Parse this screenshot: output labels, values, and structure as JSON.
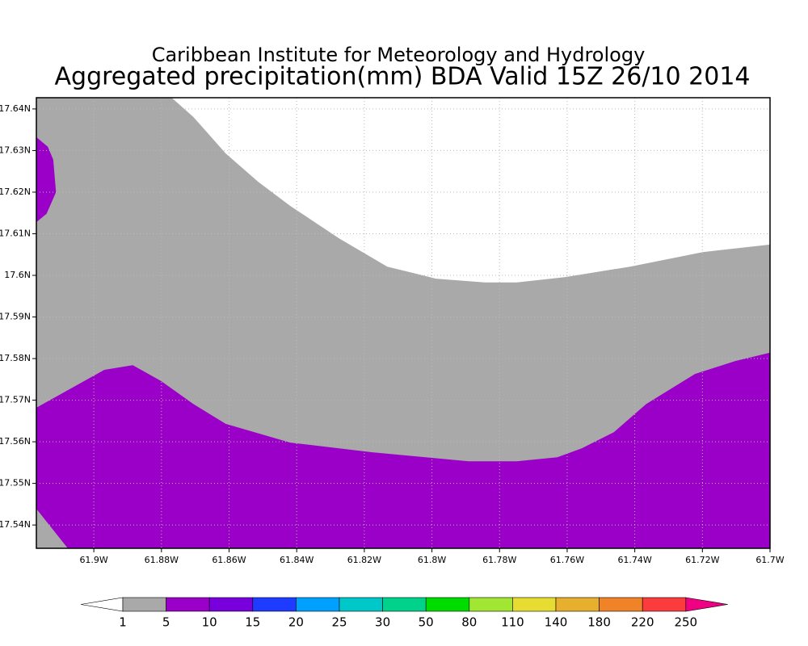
{
  "chart_data": {
    "type": "contour",
    "title": "Caribbean Institute for Meteorology and Hydrology",
    "subtitle": "Aggregated precipitation(mm) BDA Valid 15Z 26/10 2014",
    "xlim": [
      -61.917,
      -61.7
    ],
    "ylim": [
      17.5344,
      17.6427
    ],
    "xticks": [
      {
        "value": -61.9,
        "label": "61.9W"
      },
      {
        "value": -61.88,
        "label": "61.88W"
      },
      {
        "value": -61.86,
        "label": "61.86W"
      },
      {
        "value": -61.84,
        "label": "61.84W"
      },
      {
        "value": -61.82,
        "label": "61.82W"
      },
      {
        "value": -61.8,
        "label": "61.8W"
      },
      {
        "value": -61.78,
        "label": "61.78W"
      },
      {
        "value": -61.76,
        "label": "61.76W"
      },
      {
        "value": -61.74,
        "label": "61.74W"
      },
      {
        "value": -61.72,
        "label": "61.72W"
      },
      {
        "value": -61.7,
        "label": "61.7W"
      }
    ],
    "yticks": [
      {
        "value": 17.54,
        "label": "17.54N"
      },
      {
        "value": 17.55,
        "label": "17.55N"
      },
      {
        "value": 17.56,
        "label": "17.56N"
      },
      {
        "value": 17.57,
        "label": "17.57N"
      },
      {
        "value": 17.58,
        "label": "17.58N"
      },
      {
        "value": 17.59,
        "label": "17.59N"
      },
      {
        "value": 17.6,
        "label": "17.6N"
      },
      {
        "value": 17.61,
        "label": "17.61N"
      },
      {
        "value": 17.62,
        "label": "17.62N"
      },
      {
        "value": 17.63,
        "label": "17.63N"
      },
      {
        "value": 17.64,
        "label": "17.64N"
      }
    ],
    "grid": true,
    "background_color": "#ffffff",
    "regions": [
      {
        "color": "#a9a9a9",
        "x": [
          -61.877,
          -61.8706,
          -61.861,
          -61.8514,
          -61.8419,
          -61.8275,
          -61.8132,
          -61.7988,
          -61.7844,
          -61.7749,
          -61.7605,
          -61.7414,
          -61.7199,
          -61.7,
          -61.7,
          -61.917,
          -61.917
        ],
        "y": [
          17.6427,
          17.6381,
          17.6293,
          17.6225,
          17.6167,
          17.6089,
          17.6021,
          17.5992,
          17.5983,
          17.5983,
          17.5996,
          17.6021,
          17.6056,
          17.6074,
          17.5344,
          17.5344,
          17.6427
        ]
      },
      {
        "color": "#9b00c8",
        "x": [
          -61.917,
          -61.8969,
          -61.8885,
          -61.8801,
          -61.8706,
          -61.861,
          -61.8419,
          -61.8179,
          -61.7892,
          -61.7749,
          -61.7629,
          -61.7557,
          -61.7462,
          -61.7366,
          -61.7222,
          -61.7103,
          -61.7,
          -61.7,
          -61.9077,
          -61.917
        ],
        "y": [
          17.5682,
          17.5773,
          17.5784,
          17.5746,
          17.5691,
          17.5643,
          17.5598,
          17.5575,
          17.5553,
          17.5553,
          17.5563,
          17.5584,
          17.5623,
          17.5691,
          17.5763,
          17.5794,
          17.5814,
          17.5344,
          17.5344,
          17.5439
        ]
      },
      {
        "color": "#9b00c8",
        "x": [
          -61.917,
          -61.9136,
          -61.912,
          -61.9112,
          -61.914,
          -61.917
        ],
        "y": [
          17.6332,
          17.6309,
          17.6278,
          17.62,
          17.6148,
          17.6128
        ]
      }
    ],
    "colorbar": {
      "levels": [
        1,
        5,
        10,
        15,
        20,
        25,
        30,
        50,
        80,
        110,
        140,
        180,
        220,
        250
      ],
      "colors": [
        "#ffffff",
        "#a9a9a9",
        "#9b00c8",
        "#7800dc",
        "#1e3cff",
        "#00a0ff",
        "#00c8c8",
        "#00d28c",
        "#00dc00",
        "#a0e632",
        "#e6dc32",
        "#e6af2d",
        "#f08228",
        "#fa3c3c",
        "#f00082"
      ]
    }
  }
}
